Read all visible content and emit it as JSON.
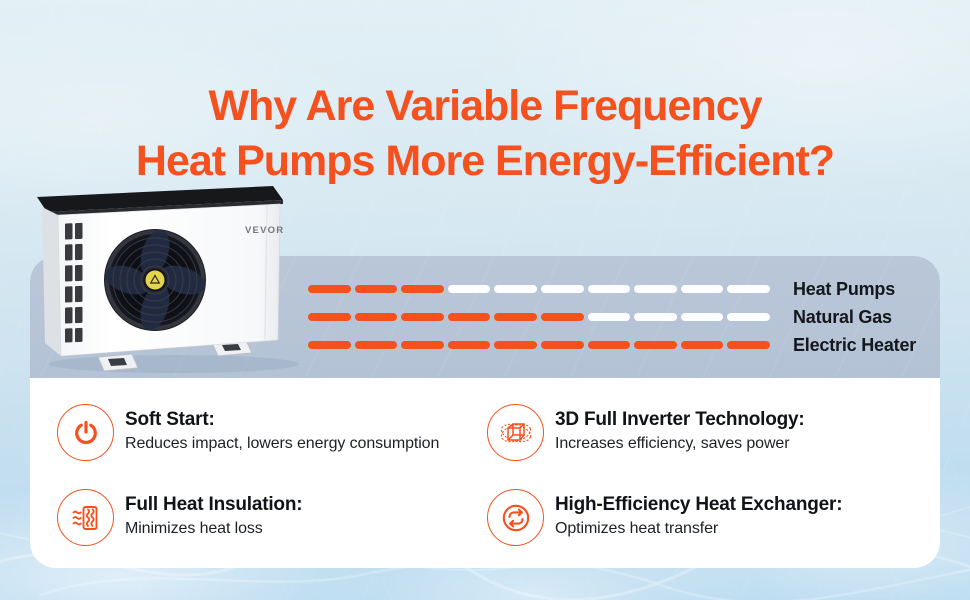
{
  "title": {
    "line1": "Why Are Variable Frequency",
    "line2": "Heat Pumps More Energy-Efficient?"
  },
  "product": {
    "brand": "VEVOR"
  },
  "chart_data": {
    "type": "bar",
    "title": "Relative energy consumption comparison (dashed segment bars)",
    "categories": [
      "Heat Pumps",
      "Natural Gas",
      "Electric Heater"
    ],
    "values": [
      3,
      6,
      10
    ],
    "total_segments": 10,
    "xlabel": "",
    "ylabel": "",
    "legend_position": "right",
    "filled_color": "#F4511E",
    "empty_color": "#FFFFFF"
  },
  "features": [
    {
      "icon": "power-icon",
      "title": "Soft Start:",
      "desc": "Reduces impact, lowers energy consumption"
    },
    {
      "icon": "cube-3d-icon",
      "title": "3D Full Inverter Technology:",
      "desc": "Increases efficiency, saves power"
    },
    {
      "icon": "insulation-icon",
      "title": "Full Heat Insulation:",
      "desc": "Minimizes heat loss"
    },
    {
      "icon": "heat-exchange-icon",
      "title": "High-Efficiency Heat Exchanger:",
      "desc": "Optimizes heat transfer"
    }
  ],
  "colors": {
    "accent_orange": "#F4511E",
    "title_orange": "#F4502B",
    "band_blue": "#BAC7D9",
    "text_dark": "#14181d",
    "background_light_blue": "#D8E9F2"
  }
}
